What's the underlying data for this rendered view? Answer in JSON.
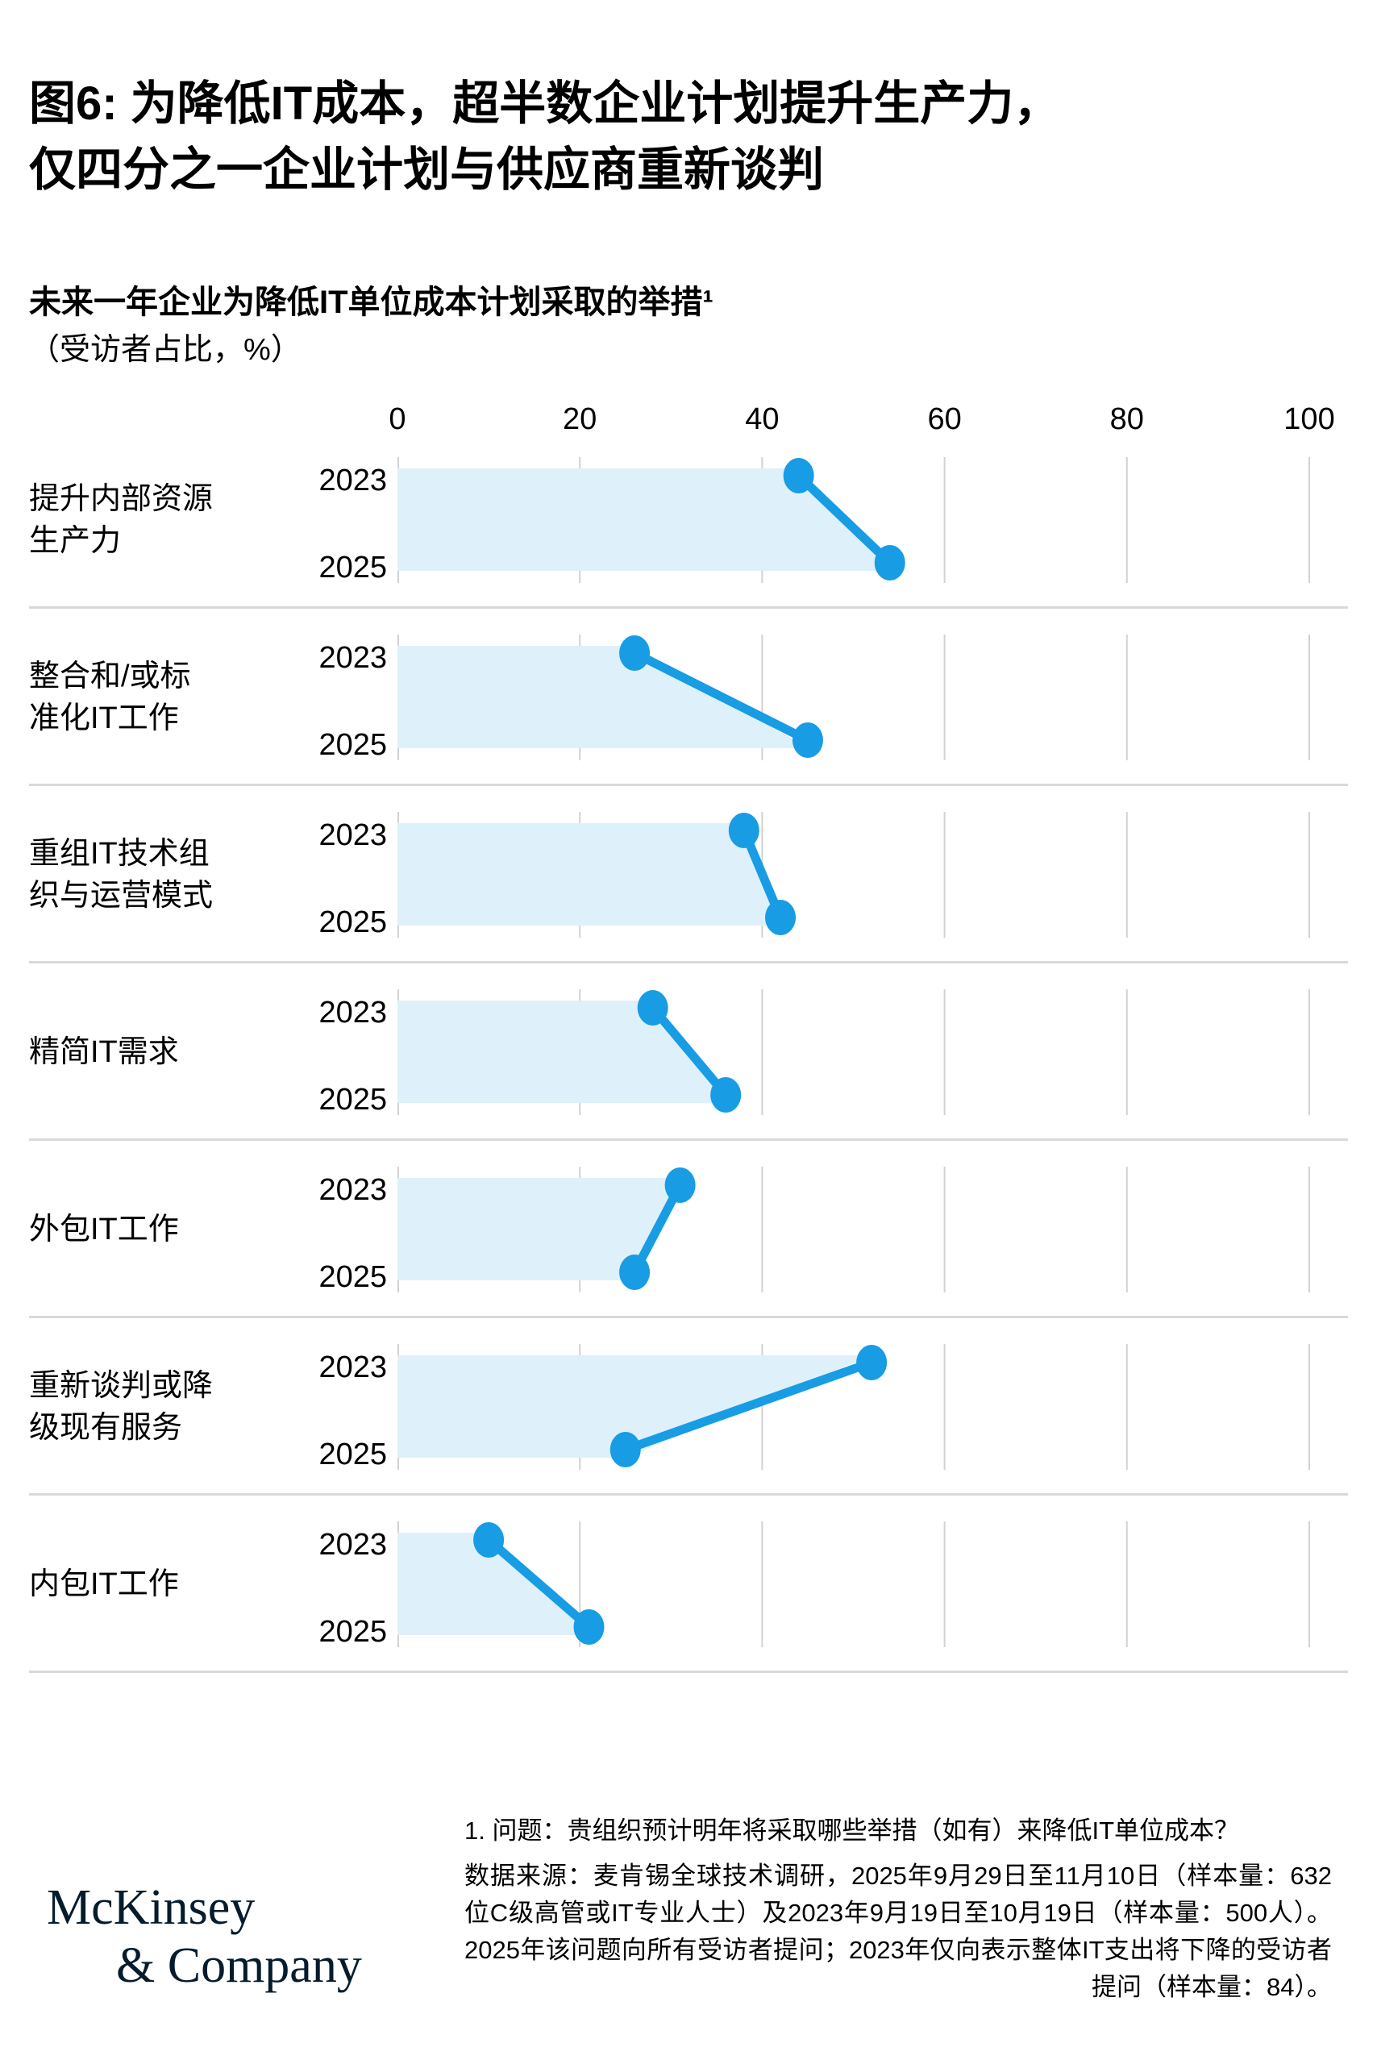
{
  "figure": {
    "title_lines": [
      "图6: 为降低IT成本，超半数企业计划提升生产力，",
      "仅四分之一企业计划与供应商重新谈判"
    ],
    "subtitle": "未来一年企业为降低IT单位成本计划采取的举措¹",
    "unit_label": "（受访者占比，%）"
  },
  "chart_data": {
    "type": "dumbbell",
    "title": "未来一年企业为降低IT单位成本计划采取的举措¹",
    "unit": "（受访者占比，%）",
    "xlim": [
      0,
      100
    ],
    "x_ticks": [
      0,
      20,
      40,
      60,
      80,
      100
    ],
    "grid": true,
    "categories": [
      "提升内部资源生产力",
      "整合和/或标准化IT工作",
      "重组IT技术组织与运营模式",
      "精简IT需求",
      "外包IT工作",
      "重新谈判或降级现有服务",
      "内包IT工作"
    ],
    "category_label_lines": [
      [
        "提升内部资源",
        "生产力"
      ],
      [
        "整合和/或标",
        "准化IT工作"
      ],
      [
        "重组IT技术组",
        "织与运营模式"
      ],
      [
        "精简IT需求"
      ],
      [
        "外包IT工作"
      ],
      [
        "重新谈判或降",
        "级现有服务"
      ],
      [
        "内包IT工作"
      ]
    ],
    "series": [
      {
        "name": "2023",
        "values": [
          44,
          26,
          38,
          28,
          31,
          52,
          10
        ]
      },
      {
        "name": "2025",
        "values": [
          54,
          45,
          42,
          36,
          26,
          25,
          21
        ]
      }
    ],
    "colors": {
      "dot": "#189CE4",
      "band": "#DEF0FA",
      "gridline": "#D2D2D2",
      "separator": "#D9D9D9"
    }
  },
  "footnotes": {
    "question": "1. 问题：贵组织预计明年将采取哪些举措（如有）来降低IT单位成本？",
    "source": "数据来源：麦肯锡全球技术调研，2025年9月29日至11月10日（样本量：632位C级高管或IT专业人士）及2023年9月19日至10月19日（样本量：500人）。2025年该问题向所有受访者提问；2023年仅向表示整体IT支出将下降的受访者提问（样本量：84）。"
  },
  "logo": {
    "line1": "McKinsey",
    "line2": "& Company",
    "color": "#051C2C"
  }
}
